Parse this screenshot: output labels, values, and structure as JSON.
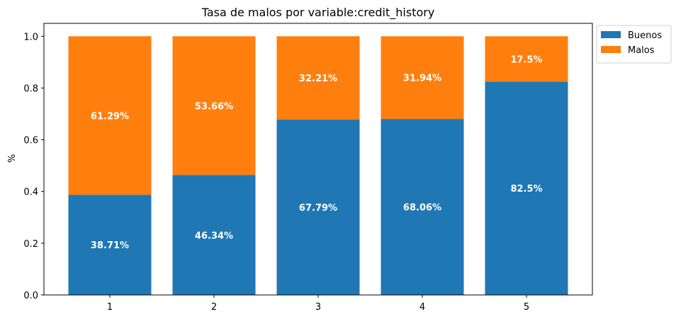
{
  "chart_data": {
    "type": "bar",
    "stacked": true,
    "title": "Tasa de malos por variable:credit_history",
    "xlabel": "",
    "ylabel": "%",
    "categories": [
      "1",
      "2",
      "3",
      "4",
      "5"
    ],
    "series": [
      {
        "name": "Buenos",
        "color": "#1f77b4",
        "values": [
          0.3871,
          0.4634,
          0.6779,
          0.6806,
          0.825
        ],
        "labels": [
          "38.71%",
          "46.34%",
          "67.79%",
          "68.06%",
          "82.5%"
        ]
      },
      {
        "name": "Malos",
        "color": "#ff7f0e",
        "values": [
          0.6129,
          0.5366,
          0.3221,
          0.3194,
          0.175
        ],
        "labels": [
          "61.29%",
          "53.66%",
          "32.21%",
          "31.94%",
          "17.5%"
        ]
      }
    ],
    "ylim": [
      0,
      1.05
    ],
    "yticks": [
      "0.0",
      "0.2",
      "0.4",
      "0.6",
      "0.8",
      "1.0"
    ],
    "ytick_values": [
      0,
      0.2,
      0.4,
      0.6,
      0.8,
      1.0
    ],
    "grid": false,
    "legend_position": "outside-top-right"
  }
}
